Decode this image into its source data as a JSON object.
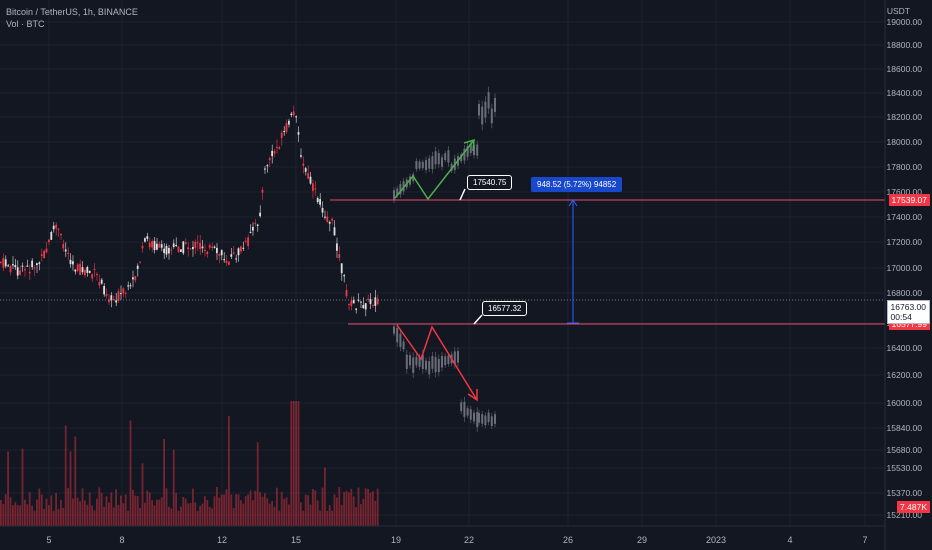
{
  "legend": {
    "title": "Bitcoin / TetherUS, 1h, BINANCE",
    "volume": "Vol · BTC"
  },
  "axis": {
    "unit": "USDT",
    "price_ticks": [
      "19000.00",
      "18800.00",
      "18600.00",
      "18400.00",
      "18200.00",
      "18000.00",
      "17800.00",
      "17600.00",
      "17400.00",
      "17200.00",
      "17000.00",
      "16800.00",
      "16600.00",
      "16400.00",
      "16200.00",
      "16000.00",
      "15840.00",
      "15680.00",
      "15530.00",
      "15370.00",
      "15210.00"
    ],
    "time_ticks": [
      "5",
      "8",
      "12",
      "15",
      "19",
      "22",
      "26",
      "29",
      "2023",
      "4",
      "7"
    ]
  },
  "price_tags": {
    "upper_level": "17539.07",
    "lower_level": "16577.99",
    "last_price": "16763.00",
    "countdown": "00:54",
    "volume_value": "7.487K"
  },
  "annotations": {
    "upper_callout": "17540.75",
    "lower_callout": "16577.32",
    "measure": "948.52 (5.72%) 94852"
  },
  "colors": {
    "background": "#131722",
    "bear": "#f23645",
    "bull": "#e0e0e0",
    "projection": "#6b6e78",
    "level_line": "#e84a6a",
    "measure_line": "#2962ff",
    "arrow_up": "#4caf50",
    "arrow_down": "#f23645"
  }
}
